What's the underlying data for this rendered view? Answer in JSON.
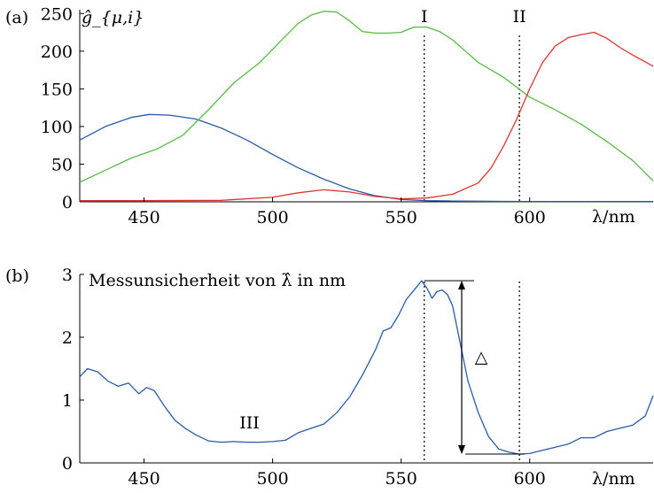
{
  "chart_data": [
    {
      "type": "line",
      "panel_label": "(a)",
      "ylabel": "ĝ_{μ,i}",
      "xlabel": "λ/nm",
      "xlim": [
        425,
        648
      ],
      "ylim": [
        0,
        255
      ],
      "xticks": [
        450,
        500,
        550,
        600
      ],
      "yticks": [
        0,
        50,
        100,
        150,
        200,
        250
      ],
      "grid": false,
      "series": [
        {
          "color": "#2a5aa8",
          "x": [
            425,
            435,
            445,
            452,
            460,
            470,
            480,
            490,
            500,
            510,
            520,
            530,
            540,
            550,
            560,
            570,
            580,
            590,
            600,
            610,
            620,
            630,
            640,
            648
          ],
          "y": [
            82,
            100,
            112,
            116,
            115,
            110,
            98,
            82,
            63,
            45,
            30,
            17,
            8,
            3,
            1.5,
            1,
            0.8,
            0.6,
            0.5,
            0.5,
            0.5,
            0.5,
            0.5,
            0.5
          ]
        },
        {
          "color": "#55bb44",
          "x": [
            425,
            435,
            445,
            455,
            465,
            475,
            485,
            495,
            505,
            510,
            515,
            520,
            525,
            530,
            535,
            540,
            545,
            550,
            555,
            560,
            565,
            570,
            575,
            580,
            590,
            600,
            610,
            620,
            630,
            640,
            648
          ],
          "y": [
            26,
            42,
            58,
            70,
            88,
            122,
            158,
            185,
            220,
            237,
            248,
            253,
            252,
            240,
            226,
            224,
            224,
            225,
            232,
            232,
            226,
            215,
            200,
            185,
            165,
            139,
            122,
            103,
            80,
            55,
            28
          ],
          "name": ""
        },
        {
          "color": "#dd3333",
          "x": [
            425,
            450,
            480,
            500,
            510,
            520,
            530,
            540,
            550,
            560,
            570,
            580,
            585,
            590,
            595,
            600,
            605,
            610,
            615,
            620,
            625,
            630,
            635,
            640,
            648
          ],
          "y": [
            1.5,
            1.5,
            2,
            6,
            12,
            16,
            13,
            7,
            4,
            5,
            10,
            25,
            45,
            75,
            110,
            150,
            185,
            207,
            218,
            222,
            225,
            217,
            205,
            195,
            180
          ]
        }
      ],
      "vlines": [
        {
          "x": 559,
          "label": "I"
        },
        {
          "x": 596,
          "label": "II"
        }
      ]
    },
    {
      "type": "line",
      "panel_label": "(b)",
      "title": "Messunsicherheit von λ̂ in nm",
      "xlabel": "λ/nm",
      "xlim": [
        425,
        648
      ],
      "ylim": [
        0,
        3
      ],
      "xticks": [
        450,
        500,
        550,
        600
      ],
      "yticks": [
        0,
        1,
        2,
        3
      ],
      "grid": false,
      "series": [
        {
          "color": "#2a5aa8",
          "x": [
            425,
            428,
            432,
            436,
            440,
            444,
            448,
            451,
            454,
            458,
            462,
            466,
            470,
            475,
            480,
            485,
            490,
            495,
            500,
            505,
            510,
            515,
            520,
            525,
            530,
            535,
            540,
            543,
            546,
            549,
            552,
            555,
            558,
            560,
            562,
            564,
            566,
            568,
            570,
            572,
            574,
            576,
            578,
            580,
            584,
            588,
            592,
            596,
            600,
            605,
            610,
            615,
            620,
            625,
            630,
            635,
            640,
            645,
            648
          ],
          "y": [
            1.37,
            1.5,
            1.45,
            1.3,
            1.22,
            1.27,
            1.1,
            1.2,
            1.15,
            0.9,
            0.68,
            0.55,
            0.45,
            0.35,
            0.33,
            0.34,
            0.33,
            0.33,
            0.34,
            0.36,
            0.48,
            0.55,
            0.62,
            0.8,
            1.05,
            1.4,
            1.8,
            2.1,
            2.15,
            2.35,
            2.6,
            2.75,
            2.9,
            2.78,
            2.62,
            2.73,
            2.75,
            2.68,
            2.5,
            2.1,
            1.7,
            1.3,
            1.05,
            0.8,
            0.42,
            0.22,
            0.17,
            0.14,
            0.15,
            0.2,
            0.25,
            0.3,
            0.4,
            0.4,
            0.5,
            0.55,
            0.6,
            0.75,
            1.07
          ]
        }
      ],
      "vlines": [
        {
          "x": 559,
          "label": ""
        },
        {
          "x": 596,
          "label": ""
        }
      ],
      "annotations": [
        {
          "text": "III",
          "x": 491,
          "y": 0.55
        },
        {
          "text": "△",
          "x": 590,
          "y": 1.7,
          "kind": "double-arrow",
          "y_top": 2.9,
          "y_bottom": 0.14
        }
      ]
    }
  ]
}
